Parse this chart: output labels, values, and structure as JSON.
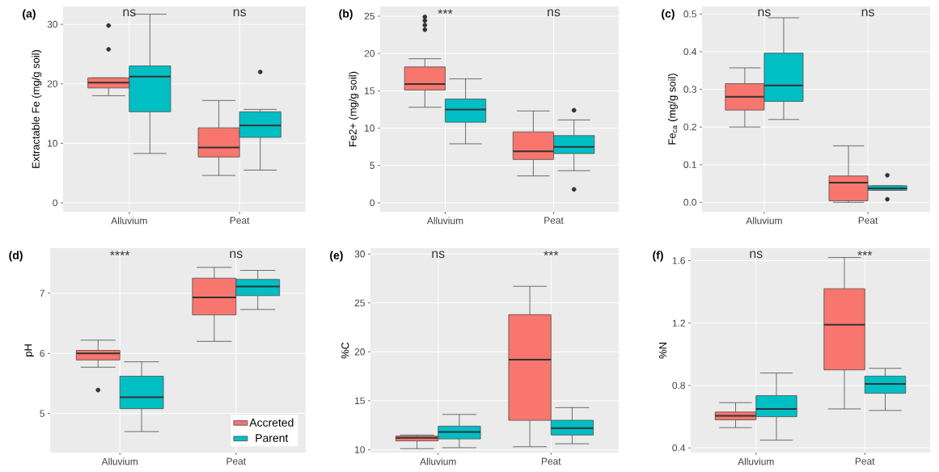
{
  "chart_data": [
    {
      "type": "box",
      "title": "(a)",
      "ylabel": "Extractable Fe (mg/g soil)",
      "categories": [
        "Alluvium",
        "Peat"
      ],
      "ylim": [
        -1.5,
        33
      ],
      "yticks": [
        0,
        10,
        20,
        30
      ],
      "grid": true,
      "series": [
        {
          "color": "#f8766d",
          "boxes": [
            {
              "low": 18,
              "q1": 19.3,
              "median": 20.2,
              "q3": 21,
              "high": 21,
              "outliers": [
                25.8,
                29.8
              ]
            },
            {
              "low": 4.6,
              "q1": 7.7,
              "median": 9.3,
              "q3": 12.6,
              "high": 17.2
            }
          ]
        },
        {
          "color": "#00bfc4",
          "boxes": [
            {
              "low": 8.3,
              "q1": 15.3,
              "median": 21.2,
              "q3": 23,
              "high": 31.7
            },
            {
              "low": 5.5,
              "q1": 11,
              "median": 13,
              "q3": 15.3,
              "high": 15.7,
              "outliers": [
                22
              ]
            }
          ]
        }
      ],
      "annotations": [
        "ns",
        "ns"
      ]
    },
    {
      "type": "box",
      "title": "(b)",
      "ylabel": "Fe2+ (mg/g soil)",
      "categories": [
        "Alluvium",
        "Peat"
      ],
      "ylim": [
        -1.2,
        26.3
      ],
      "yticks": [
        0,
        5,
        10,
        15,
        20,
        25
      ],
      "grid": true,
      "series": [
        {
          "color": "#f8766d",
          "boxes": [
            {
              "low": 12.8,
              "q1": 15.1,
              "median": 15.9,
              "q3": 18.2,
              "high": 19.3,
              "outliers": [
                23.2,
                23.8,
                24.4,
                24.9
              ]
            },
            {
              "low": 3.6,
              "q1": 5.8,
              "median": 6.9,
              "q3": 9.5,
              "high": 12.3
            }
          ]
        },
        {
          "color": "#00bfc4",
          "boxes": [
            {
              "low": 7.9,
              "q1": 10.8,
              "median": 12.5,
              "q3": 13.9,
              "high": 16.6
            },
            {
              "low": 4.3,
              "q1": 6.6,
              "median": 7.5,
              "q3": 9.0,
              "high": 11.1,
              "outliers": [
                12.4,
                1.8
              ]
            }
          ]
        }
      ],
      "annotations": [
        "***",
        "ns"
      ]
    },
    {
      "type": "box",
      "title": "(c)",
      "ylabel": "Fe$_{ca}$ (mg/g soil)",
      "categories": [
        "Alluvium",
        "Peat"
      ],
      "ylim": [
        -0.025,
        0.52
      ],
      "yticks": [
        {
          "value": 0,
          "label": "0.0"
        },
        0.1,
        0.2,
        0.3,
        0.4,
        0.5
      ],
      "grid": true,
      "series": [
        {
          "color": "#f8766d",
          "boxes": [
            {
              "low": 0.2,
              "q1": 0.245,
              "median": 0.28,
              "q3": 0.315,
              "high": 0.357
            },
            {
              "low": 0.0,
              "q1": 0.004,
              "median": 0.052,
              "q3": 0.07,
              "high": 0.15
            }
          ]
        },
        {
          "color": "#00bfc4",
          "boxes": [
            {
              "low": 0.22,
              "q1": 0.268,
              "median": 0.31,
              "q3": 0.396,
              "high": 0.49
            },
            {
              "low": 0.032,
              "q1": 0.032,
              "median": 0.037,
              "q3": 0.044,
              "high": 0.044,
              "outliers": [
                0.072,
                0.008
              ]
            }
          ]
        }
      ],
      "annotations": [
        "ns",
        "ns"
      ]
    },
    {
      "type": "box",
      "title": "(d)",
      "ylabel": "pH",
      "categories": [
        "Alluvium",
        "Peat"
      ],
      "ylim": [
        4.35,
        7.75
      ],
      "yticks": [
        5,
        6,
        7
      ],
      "grid": true,
      "legend": "bottom right",
      "series": [
        {
          "name": "Accreted",
          "color": "#f8766d",
          "boxes": [
            {
              "low": 5.77,
              "q1": 5.89,
              "median": 6.0,
              "q3": 6.05,
              "high": 6.22,
              "outliers": [
                5.39
              ]
            },
            {
              "low": 6.2,
              "q1": 6.64,
              "median": 6.93,
              "q3": 7.25,
              "high": 7.43
            }
          ]
        },
        {
          "name": "Parent",
          "color": "#00bfc4",
          "boxes": [
            {
              "low": 4.7,
              "q1": 5.08,
              "median": 5.27,
              "q3": 5.62,
              "high": 5.86
            },
            {
              "low": 6.73,
              "q1": 6.96,
              "median": 7.11,
              "q3": 7.23,
              "high": 7.38
            }
          ]
        }
      ],
      "annotations": [
        "****",
        "ns"
      ]
    },
    {
      "type": "box",
      "title": "(e)",
      "ylabel": "%C",
      "categories": [
        "Alluvium",
        "Peat"
      ],
      "ylim": [
        9.7,
        30.6
      ],
      "yticks": [
        10,
        15,
        20,
        25,
        30
      ],
      "grid": true,
      "series": [
        {
          "color": "#f8766d",
          "boxes": [
            {
              "low": 10.1,
              "q1": 10.9,
              "median": 11.2,
              "q3": 11.4,
              "high": 11.5
            },
            {
              "low": 10.3,
              "q1": 13.0,
              "median": 19.2,
              "q3": 23.8,
              "high": 26.7
            }
          ]
        },
        {
          "color": "#00bfc4",
          "boxes": [
            {
              "low": 10.2,
              "q1": 11.1,
              "median": 11.8,
              "q3": 12.4,
              "high": 13.6
            },
            {
              "low": 10.6,
              "q1": 11.5,
              "median": 12.2,
              "q3": 13.0,
              "high": 14.3
            }
          ]
        }
      ],
      "annotations": [
        "ns",
        "***"
      ]
    },
    {
      "type": "box",
      "title": "(f)",
      "ylabel": "%N",
      "categories": [
        "Alluvium",
        "Peat"
      ],
      "ylim": [
        0.37,
        1.68
      ],
      "yticks": [
        0.4,
        0.8,
        1.2,
        1.6
      ],
      "grid": true,
      "series": [
        {
          "color": "#f8766d",
          "boxes": [
            {
              "low": 0.53,
              "q1": 0.58,
              "median": 0.605,
              "q3": 0.63,
              "high": 0.69
            },
            {
              "low": 0.65,
              "q1": 0.9,
              "median": 1.19,
              "q3": 1.42,
              "high": 1.62
            }
          ]
        },
        {
          "color": "#00bfc4",
          "boxes": [
            {
              "low": 0.45,
              "q1": 0.6,
              "median": 0.65,
              "q3": 0.735,
              "high": 0.88
            },
            {
              "low": 0.64,
              "q1": 0.75,
              "median": 0.81,
              "q3": 0.86,
              "high": 0.91
            }
          ]
        }
      ],
      "annotations": [
        "ns",
        "***"
      ]
    }
  ]
}
